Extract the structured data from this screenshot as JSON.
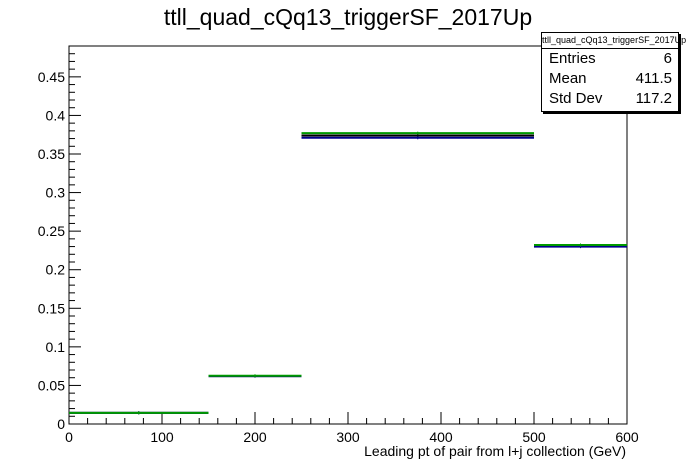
{
  "chart_data": {
    "type": "histogram",
    "title": "ttll_quad_cQq13_triggerSF_2017Up",
    "xlabel": "Leading pt of pair from l+j collection (GeV)",
    "ylabel": "",
    "xlim": [
      0,
      600
    ],
    "ylim": [
      0,
      0.49
    ],
    "xticks": [
      0,
      100,
      200,
      300,
      400,
      500,
      600
    ],
    "yticks": [
      0,
      0.05,
      0.1,
      0.15,
      0.2,
      0.25,
      0.3,
      0.35,
      0.4,
      0.45
    ],
    "bins": [
      {
        "low": 0,
        "high": 150
      },
      {
        "low": 150,
        "high": 250
      },
      {
        "low": 250,
        "high": 500
      },
      {
        "low": 500,
        "high": 600
      }
    ],
    "series": [
      {
        "color": "#000000",
        "values": [
          0.0145,
          0.062,
          0.374,
          0.231
        ]
      },
      {
        "color": "#00008b",
        "values": [
          0.0145,
          0.062,
          0.371,
          0.23
        ]
      },
      {
        "color": "#009900",
        "values": [
          0.0145,
          0.0625,
          0.377,
          0.232
        ]
      }
    ],
    "grid": false
  },
  "stats": {
    "title": "ttll_quad_cQq13_triggerSF_2017Up",
    "entries_label": "Entries",
    "entries_value": "6",
    "mean_label": "Mean",
    "mean_value": "411.5",
    "stddev_label": "Std Dev",
    "stddev_value": "117.2"
  }
}
